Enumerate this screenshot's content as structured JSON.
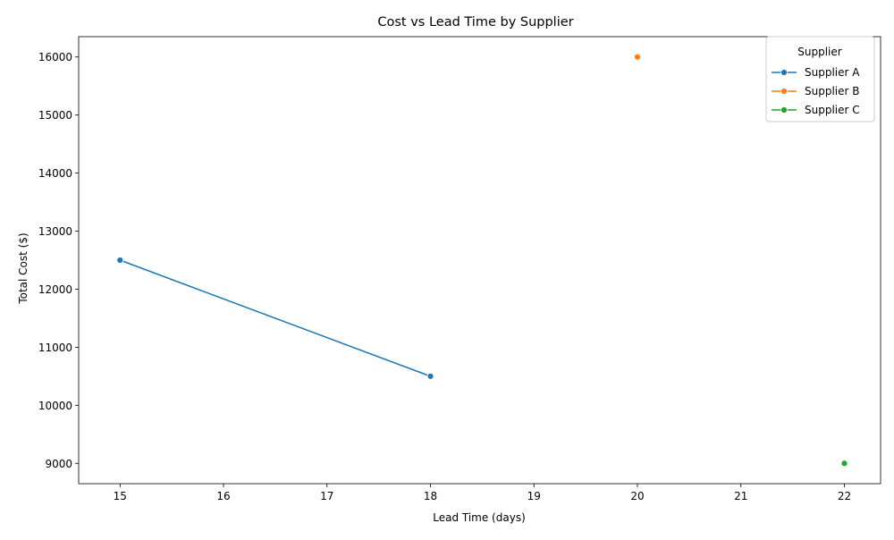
{
  "chart_data": {
    "type": "line",
    "title": "Cost vs Lead Time by Supplier",
    "xlabel": "Lead Time (days)",
    "ylabel": "Total Cost ($)",
    "xlim": [
      14.6,
      22.35
    ],
    "ylim": [
      8650,
      16350
    ],
    "xticks": [
      15,
      16,
      17,
      18,
      19,
      20,
      21,
      22
    ],
    "yticks": [
      9000,
      10000,
      11000,
      12000,
      13000,
      14000,
      15000,
      16000
    ],
    "grid": false,
    "legend": {
      "title": "Supplier",
      "placement": "top-right"
    },
    "series": [
      {
        "name": "Supplier A",
        "color": "#1f77b4",
        "points": [
          {
            "x": 15,
            "y": 12500
          },
          {
            "x": 18,
            "y": 10500
          }
        ]
      },
      {
        "name": "Supplier B",
        "color": "#ff7f0e",
        "points": [
          {
            "x": 20,
            "y": 16000
          }
        ]
      },
      {
        "name": "Supplier C",
        "color": "#2ca02c",
        "points": [
          {
            "x": 22,
            "y": 9000
          }
        ]
      }
    ]
  }
}
